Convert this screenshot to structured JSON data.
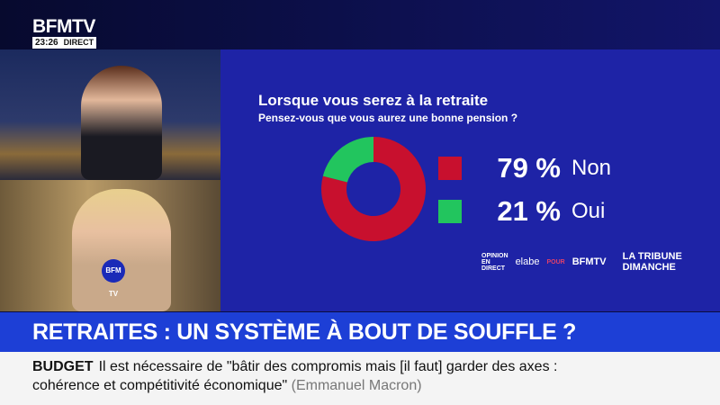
{
  "header": {
    "logo": "BFMTV",
    "time": "23:26",
    "live": "DIRECT"
  },
  "video": {
    "mic_label": "BFM TV"
  },
  "poll": {
    "title": "Lorsque vous serez à la retraite",
    "question": "Pensez-vous que vous aurez une bonne pension ?",
    "sources": {
      "opinion": "OPINION EN DIRECT",
      "elabe": "elabe",
      "pour": "POUR",
      "bfmtv": "BFMTV",
      "tribune": "LA TRIBUNE DIMANCHE"
    }
  },
  "chart_data": {
    "type": "pie",
    "donut": true,
    "categories": [
      "Non",
      "Oui"
    ],
    "values": [
      79,
      21
    ],
    "labels": [
      "79 %",
      "21 %"
    ],
    "colors": [
      "#c8102e",
      "#22c55e"
    ],
    "legend": "right"
  },
  "headline": "RETRAITES : UN SYSTÈME À BOUT DE SOUFFLE ?",
  "ticker": {
    "tag": "BUDGET",
    "line1": "Il est nécessaire de \"bâtir des compromis mais [il faut] garder des axes :",
    "line2": "cohérence et compétitivité économique\"",
    "attribution": "(Emmanuel Macron)"
  }
}
